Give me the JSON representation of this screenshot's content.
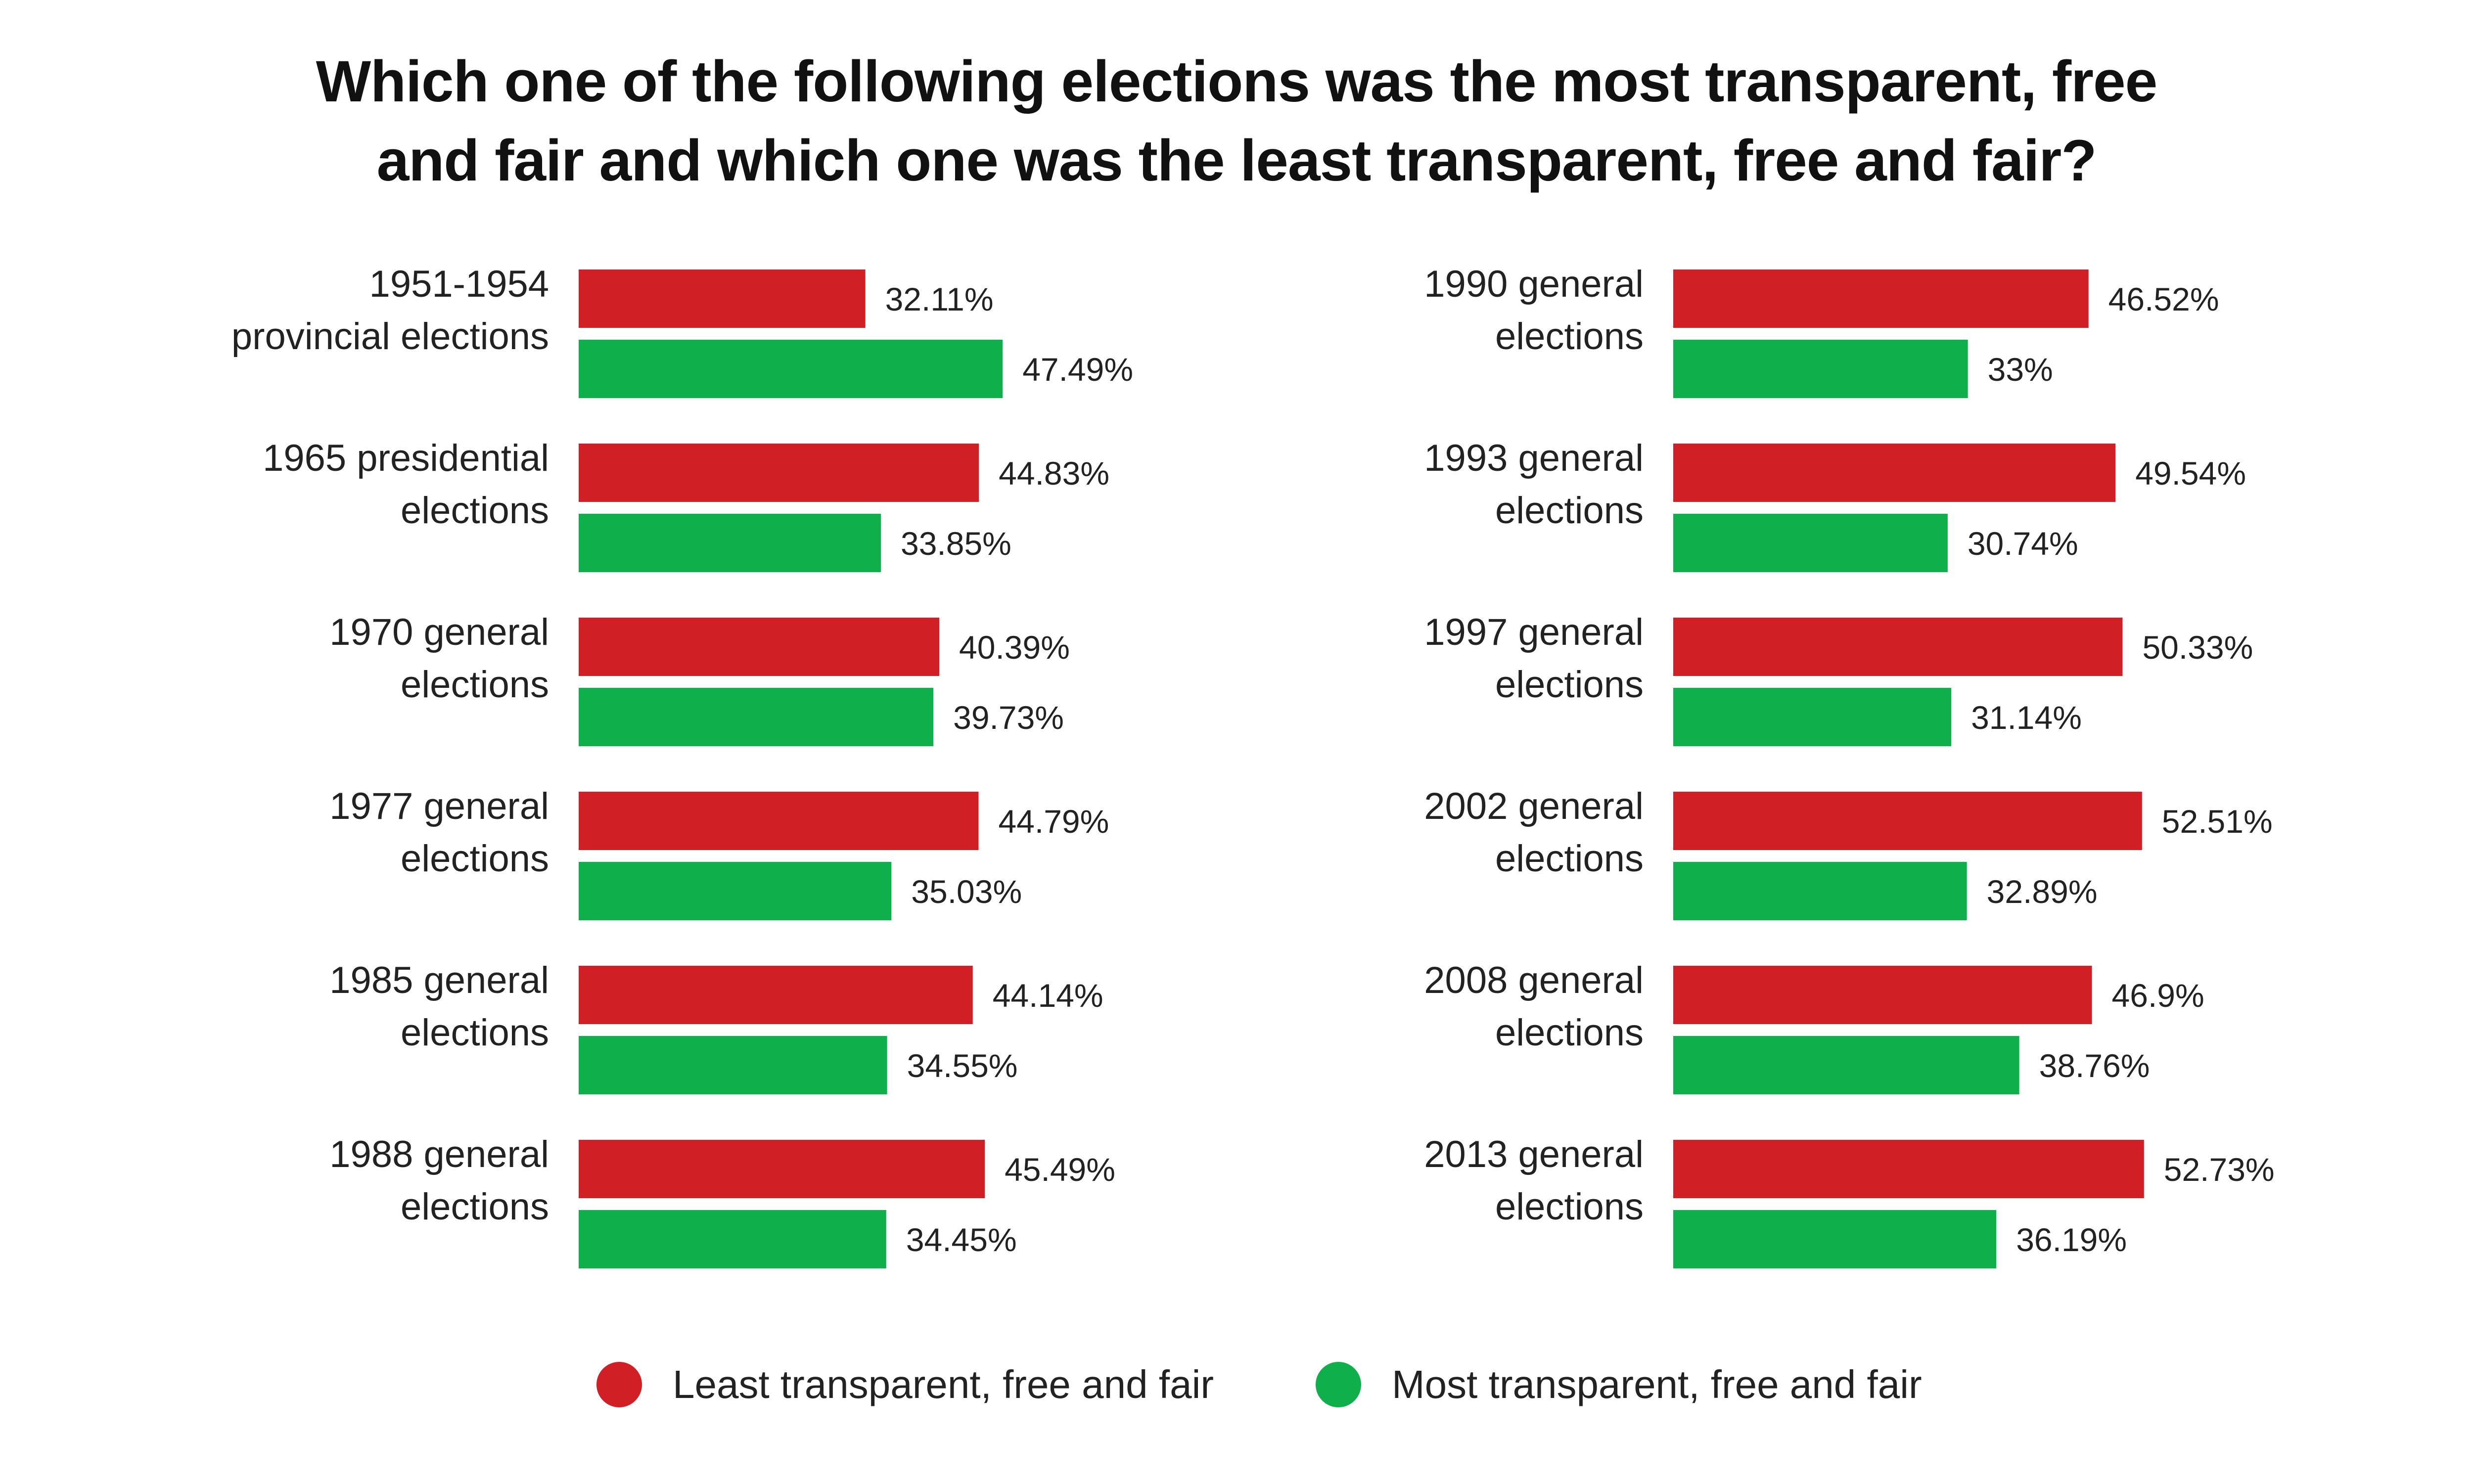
{
  "title_lines": [
    "Which one of the following elections was the most transparent, free",
    "and fair and which one was the least transparent, free and fair?"
  ],
  "colors": {
    "least": "#D11F26",
    "most": "#0FAF4B"
  },
  "legend": {
    "least_label": "Least transparent, free and fair",
    "most_label": "Most transparent, free and fair"
  },
  "chart_data": {
    "type": "bar",
    "orientation": "horizontal",
    "title": "Which one of the following elections was the most transparent, free and fair and which one was the least transparent, free and fair?",
    "series_names": [
      "Least transparent, free and fair",
      "Most transparent, free and fair"
    ],
    "panels": [
      {
        "categories": [
          [
            "1951-1954",
            "provincial elections"
          ],
          [
            "1965 presidential",
            "elections"
          ],
          [
            "1970 general",
            "elections"
          ],
          [
            "1977 general",
            "elections"
          ],
          [
            "1985 general",
            "elections"
          ],
          [
            "1988 general",
            "elections"
          ]
        ],
        "least": [
          32.11,
          44.83,
          40.39,
          44.79,
          44.14,
          45.49
        ],
        "most": [
          47.49,
          33.85,
          39.73,
          35.03,
          34.55,
          34.45
        ],
        "least_labels": [
          "32.11%",
          "44.83%",
          "40.39%",
          "44.79%",
          "44.14%",
          "45.49%"
        ],
        "most_labels": [
          "47.49%",
          "33.85%",
          "39.73%",
          "35.03%",
          "34.55%",
          "34.45%"
        ]
      },
      {
        "categories": [
          [
            "1990 general",
            "elections"
          ],
          [
            "1993 general",
            "elections"
          ],
          [
            "1997 general",
            "elections"
          ],
          [
            "2002 general",
            "elections"
          ],
          [
            "2008 general",
            "elections"
          ],
          [
            "2013 general",
            "elections"
          ]
        ],
        "least": [
          46.52,
          49.54,
          50.33,
          52.51,
          46.9,
          52.73
        ],
        "most": [
          33,
          30.74,
          31.14,
          32.89,
          38.76,
          36.19
        ],
        "least_labels": [
          "46.52%",
          "49.54%",
          "50.33%",
          "52.51%",
          "46.9%",
          "52.73%"
        ],
        "most_labels": [
          "33%",
          "30.74%",
          "31.14%",
          "32.89%",
          "38.76%",
          "36.19%"
        ]
      }
    ]
  }
}
